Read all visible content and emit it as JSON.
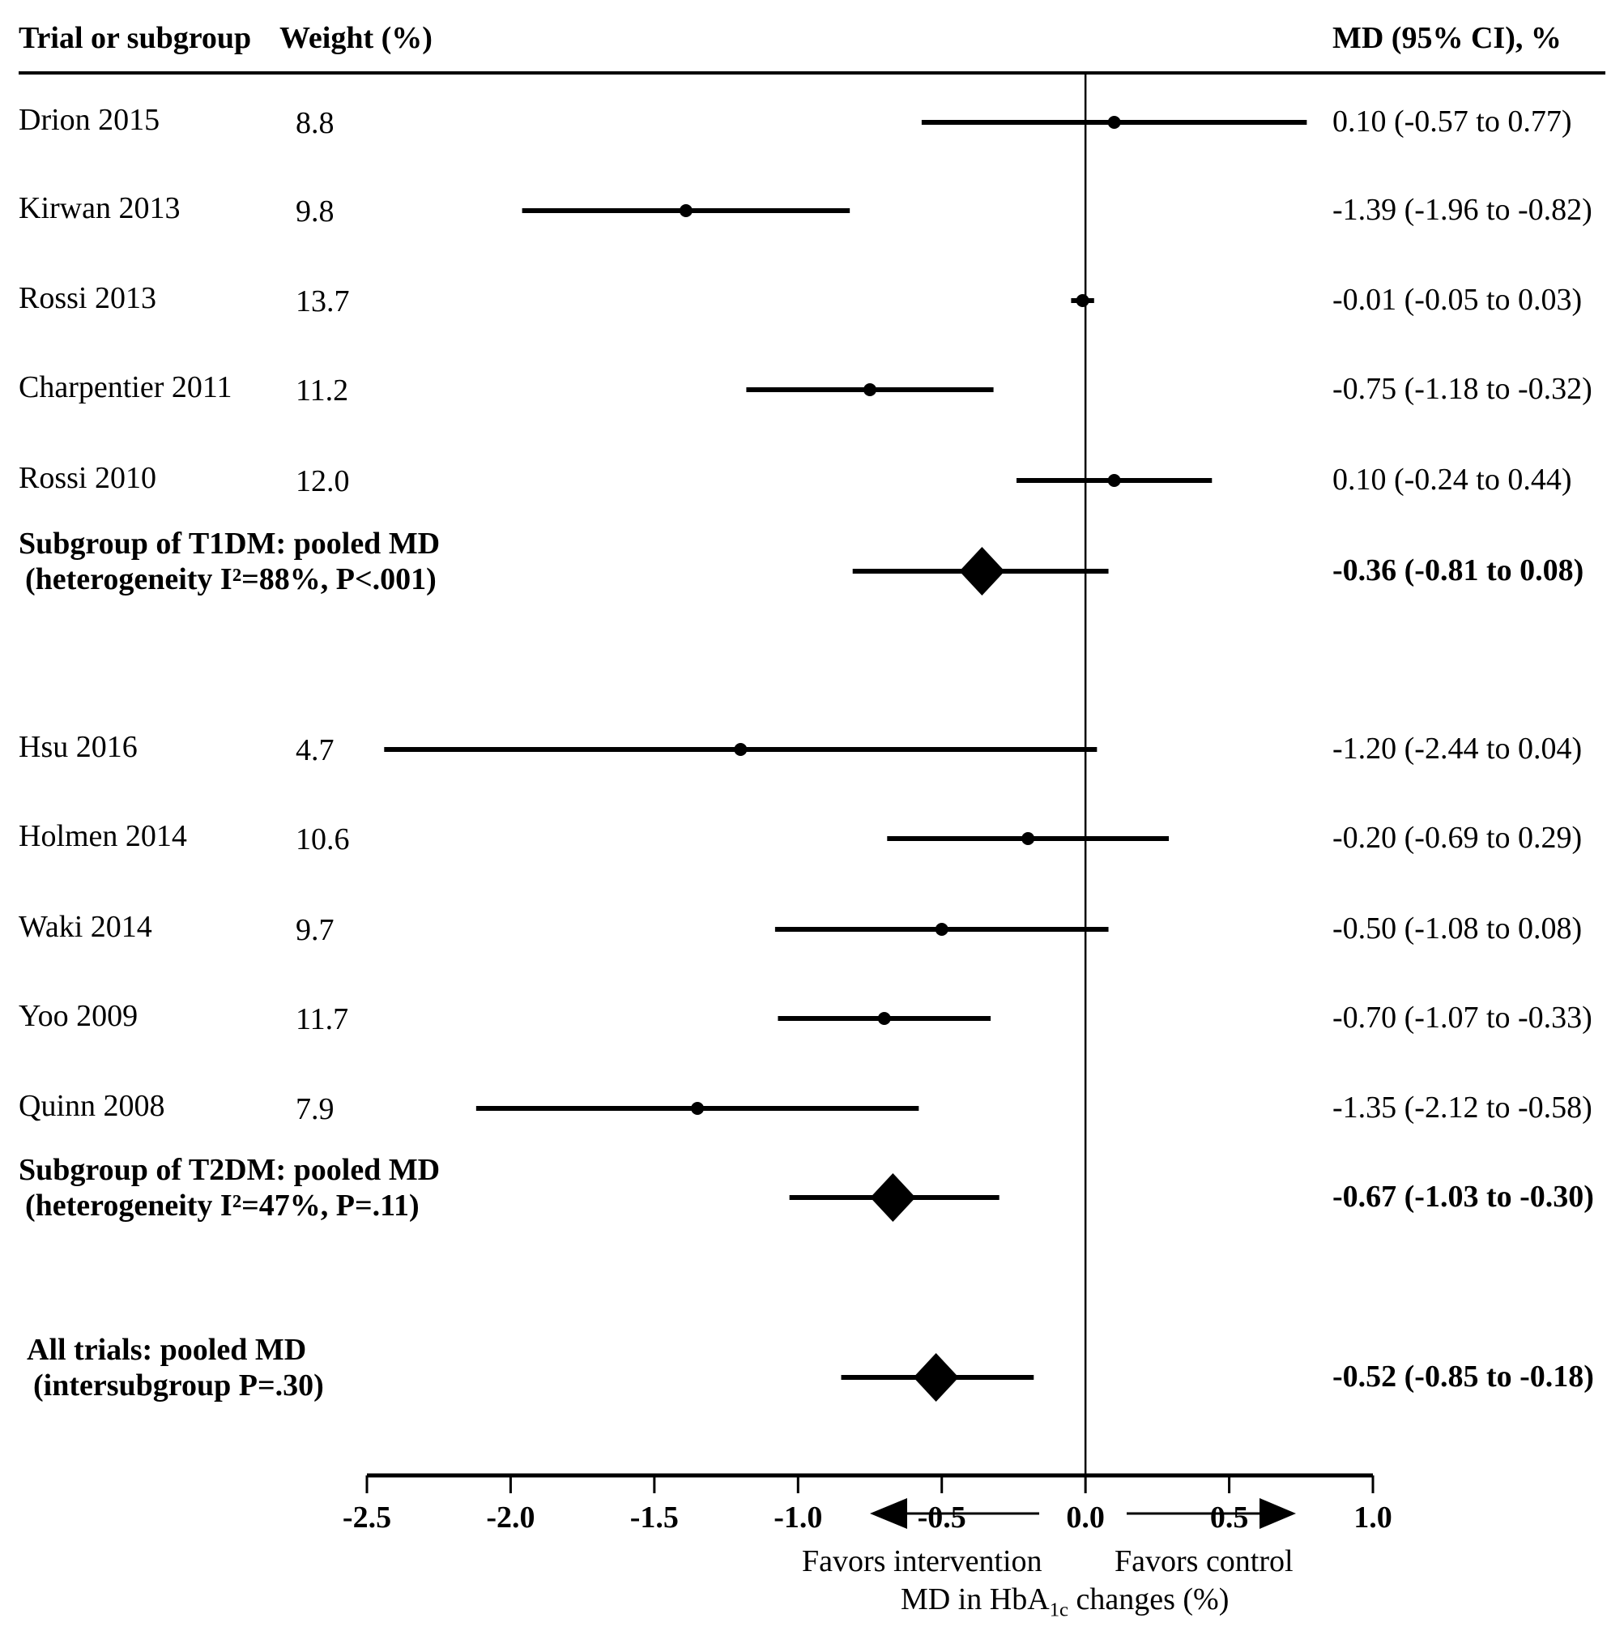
{
  "chart_data": {
    "type": "forest",
    "xlabel": "MD in HbA1c changes (%)",
    "xlim": [
      -2.5,
      1.0
    ],
    "ticks": [
      -2.5,
      -2.0,
      -1.5,
      -1.0,
      -0.5,
      0.0,
      0.5,
      1.0
    ],
    "tick_labels": [
      "-2.5",
      "-2.0",
      "-1.5",
      "-1.0",
      "-0.5",
      "0.0",
      "0.5",
      "1.0"
    ],
    "headers": {
      "trial": "Trial or subgroup",
      "weight": "Weight  (%)",
      "md": "MD (95% CI), %"
    },
    "favors_left": "Favors intervention",
    "favors_right": "Favors control",
    "rows": [
      {
        "name": "Drion 2015",
        "weight": "8.8",
        "md": 0.1,
        "lo": -0.57,
        "hi": 0.77,
        "label": "0.10 (-0.57 to 0.77)",
        "kind": "study"
      },
      {
        "name": "Kirwan 2013",
        "weight": "9.8",
        "md": -1.39,
        "lo": -1.96,
        "hi": -0.82,
        "label": "-1.39 (-1.96 to -0.82)",
        "kind": "study"
      },
      {
        "name": "Rossi 2013",
        "weight": "13.7",
        "md": -0.01,
        "lo": -0.05,
        "hi": 0.03,
        "label": "-0.01 (-0.05 to 0.03)",
        "kind": "study"
      },
      {
        "name": "Charpentier 2011",
        "weight": "11.2",
        "md": -0.75,
        "lo": -1.18,
        "hi": -0.32,
        "label": "-0.75 (-1.18 to -0.32)",
        "kind": "study"
      },
      {
        "name": "Rossi 2010",
        "weight": "12.0",
        "md": 0.1,
        "lo": -0.24,
        "hi": 0.44,
        "label": "0.10 (-0.24 to 0.44)",
        "kind": "study"
      },
      {
        "name": "Subgroup of T1DM: pooled MD",
        "name2": "(heterogeneity I²=88%, P<.001)",
        "md": -0.36,
        "lo": -0.81,
        "hi": 0.08,
        "label": "-0.36 (-0.81 to 0.08)",
        "kind": "pooled"
      },
      {
        "name": "Hsu 2016",
        "weight": "4.7",
        "md": -1.2,
        "lo": -2.44,
        "hi": 0.04,
        "label": "-1.20 (-2.44 to 0.04)",
        "kind": "study"
      },
      {
        "name": "Holmen 2014",
        "weight": "10.6",
        "md": -0.2,
        "lo": -0.69,
        "hi": 0.29,
        "label": "-0.20 (-0.69 to 0.29)",
        "kind": "study"
      },
      {
        "name": "Waki 2014",
        "weight": "9.7",
        "md": -0.5,
        "lo": -1.08,
        "hi": 0.08,
        "label": "-0.50 (-1.08 to 0.08)",
        "kind": "study"
      },
      {
        "name": "Yoo 2009",
        "weight": "11.7",
        "md": -0.7,
        "lo": -1.07,
        "hi": -0.33,
        "label": "-0.70 (-1.07 to -0.33)",
        "kind": "study"
      },
      {
        "name": "Quinn 2008",
        "weight": "7.9",
        "md": -1.35,
        "lo": -2.12,
        "hi": -0.58,
        "label": "-1.35 (-2.12 to -0.58)",
        "kind": "study"
      },
      {
        "name": "Subgroup of T2DM: pooled MD",
        "name2": "(heterogeneity I²=47%, P=.11)",
        "md": -0.67,
        "lo": -1.03,
        "hi": -0.3,
        "label": "-0.67 (-1.03 to -0.30)",
        "kind": "pooled"
      },
      {
        "name": "All trials: pooled MD",
        "name2": "(intersubgroup P=.30)",
        "md": -0.52,
        "lo": -0.85,
        "hi": -0.18,
        "label": "-0.52 (-0.85 to -0.18)",
        "kind": "pooled"
      }
    ]
  }
}
